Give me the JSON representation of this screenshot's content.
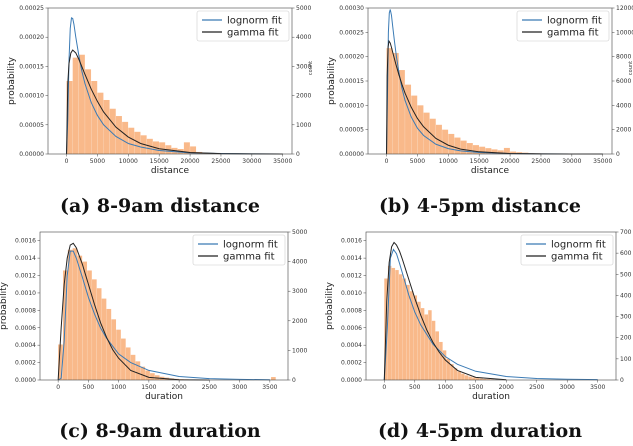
{
  "chart_data": [
    {
      "type": "bar",
      "caption": "(a) 8-9am distance",
      "xlabel": "distance",
      "ylabel": "probability",
      "y2label": "count",
      "xlim": [
        -3000,
        36500
      ],
      "ylim": [
        0,
        0.00025
      ],
      "y2lim": [
        0,
        5000
      ],
      "xticks": [
        "0",
        "5000",
        "10000",
        "15000",
        "20000",
        "25000",
        "30000",
        "35000"
      ],
      "xtick_values": [
        0,
        5000,
        10000,
        15000,
        20000,
        25000,
        30000,
        35000
      ],
      "yticks": [
        "0.00000",
        "0.00005",
        "0.00010",
        "0.00015",
        "0.00020",
        "0.00025"
      ],
      "ytick_values": [
        0,
        5e-05,
        0.0001,
        0.00015,
        0.0002,
        0.00025
      ],
      "y2ticks": [
        "0",
        "1000",
        "2000",
        "3000",
        "4000",
        "5000"
      ],
      "y2tick_values": [
        0,
        1000,
        2000,
        3000,
        4000,
        5000
      ],
      "legend": {
        "position": "top-right",
        "entries": [
          "lognorm fit",
          "gamma fit"
        ]
      },
      "histogram": {
        "x_start": 0,
        "bin_width": 1000,
        "counts": [
          2500,
          3300,
          3400,
          2900,
          2500,
          2100,
          1850,
          1550,
          1300,
          1100,
          900,
          760,
          640,
          520,
          430,
          400,
          300,
          210,
          170,
          400,
          260,
          70,
          50,
          40,
          35,
          28,
          22,
          18,
          15,
          12,
          10,
          8,
          6,
          5
        ]
      },
      "series": [
        {
          "name": "lognorm fit",
          "color": "#3b7bb5",
          "x": [
            0,
            200,
            400,
            600,
            800,
            1000,
            1200,
            1500,
            2000,
            2500,
            3000,
            4000,
            5000,
            6000,
            8000,
            10000,
            12000,
            15000,
            20000,
            25000,
            30000,
            35000
          ],
          "values": [
            0,
            6e-05,
            0.00016,
            0.000215,
            0.000233,
            0.000232,
            0.000222,
            0.0002,
            0.000168,
            0.000141,
            0.00012,
            8.8e-05,
            6.6e-05,
            5e-05,
            3e-05,
            1.8e-05,
            1.2e-05,
            6e-06,
            2e-06,
            8e-07,
            3e-07,
            1e-07
          ]
        },
        {
          "name": "gamma fit",
          "color": "#222222",
          "x": [
            0,
            200,
            400,
            700,
            1000,
            1500,
            2000,
            2500,
            3000,
            4000,
            5000,
            6000,
            8000,
            10000,
            12000,
            15000,
            20000,
            25000,
            30000,
            35000
          ],
          "values": [
            0,
            0.00012,
            0.000155,
            0.000173,
            0.000178,
            0.000173,
            0.000162,
            0.000149,
            0.000136,
            0.000111,
            9e-05,
            7.2e-05,
            4.6e-05,
            2.9e-05,
            1.8e-05,
            9e-06,
            2.5e-06,
            7e-07,
            2e-07,
            5e-08
          ]
        }
      ],
      "bar_color": "#f9b98a"
    },
    {
      "type": "bar",
      "caption": "(b) 4-5pm distance",
      "xlabel": "distance",
      "ylabel": "probability",
      "y2label": "count",
      "xlim": [
        -3000,
        36500
      ],
      "ylim": [
        0,
        0.0003
      ],
      "y2lim": [
        0,
        12000
      ],
      "xticks": [
        "0",
        "5000",
        "10000",
        "15000",
        "20000",
        "25000",
        "30000",
        "35000"
      ],
      "xtick_values": [
        0,
        5000,
        10000,
        15000,
        20000,
        25000,
        30000,
        35000
      ],
      "yticks": [
        "0.00000",
        "0.00005",
        "0.00010",
        "0.00015",
        "0.00020",
        "0.00025",
        "0.00030"
      ],
      "ytick_values": [
        0,
        5e-05,
        0.0001,
        0.00015,
        0.0002,
        0.00025,
        0.0003
      ],
      "y2ticks": [
        "0",
        "2000",
        "4000",
        "6000",
        "8000",
        "10000",
        "12000"
      ],
      "y2tick_values": [
        0,
        2000,
        4000,
        6000,
        8000,
        10000,
        12000
      ],
      "legend": {
        "position": "top-right",
        "entries": [
          "lognorm fit",
          "gamma fit"
        ]
      },
      "histogram": {
        "x_start": 0,
        "bin_width": 1000,
        "counts": [
          8700,
          8300,
          6900,
          5700,
          4800,
          4000,
          3400,
          2900,
          2400,
          2000,
          1650,
          1350,
          1100,
          900,
          730,
          600,
          480,
          380,
          300,
          500,
          200,
          150,
          110,
          80,
          60,
          45,
          35,
          25,
          18,
          12,
          9,
          6,
          4,
          3
        ]
      },
      "series": [
        {
          "name": "lognorm fit",
          "color": "#3b7bb5",
          "x": [
            0,
            150,
            300,
            450,
            600,
            800,
            1000,
            1300,
            1600,
            2000,
            2500,
            3000,
            4000,
            5000,
            6000,
            8000,
            10000,
            12000,
            15000,
            20000,
            25000,
            30000,
            35000
          ],
          "values": [
            0,
            0.00012,
            0.00025,
            0.00029,
            0.000297,
            0.000285,
            0.000262,
            0.00023,
            0.0002,
            0.000168,
            0.000135,
            0.00011,
            7.6e-05,
            5.3e-05,
            3.8e-05,
            2e-05,
            1.1e-05,
            6.5e-06,
            3e-06,
            9e-07,
            3e-07,
            1e-07,
            4e-08
          ]
        },
        {
          "name": "gamma fit",
          "color": "#222222",
          "x": [
            0,
            100,
            250,
            400,
            600,
            800,
            1000,
            1500,
            2000,
            2500,
            3000,
            4000,
            5000,
            6000,
            8000,
            10000,
            12000,
            15000,
            20000,
            25000,
            30000,
            35000
          ],
          "values": [
            0,
            0.00016,
            0.00022,
            0.000232,
            0.000228,
            0.000219,
            0.000209,
            0.000185,
            0.000163,
            0.000143,
            0.000125,
            9.6e-05,
            7.3e-05,
            5.6e-05,
            3.2e-05,
            1.8e-05,
            1e-05,
            4.5e-06,
            1e-06,
            2e-07,
            5e-08,
            1e-08
          ]
        }
      ],
      "bar_color": "#f9b98a"
    },
    {
      "type": "bar",
      "caption": "(c) 8-9am duration",
      "xlabel": "duration",
      "ylabel": "probability",
      "y2label": "",
      "xlim": [
        -300,
        3800
      ],
      "ylim": [
        0,
        0.0017
      ],
      "y2lim": [
        0,
        5000
      ],
      "xticks": [
        "0",
        "500",
        "1000",
        "1500",
        "2000",
        "2500",
        "3000",
        "3500"
      ],
      "xtick_values": [
        0,
        500,
        1000,
        1500,
        2000,
        2500,
        3000,
        3500
      ],
      "yticks": [
        "0.0000",
        "0.0002",
        "0.0004",
        "0.0006",
        "0.0008",
        "0.0010",
        "0.0012",
        "0.0014",
        "0.0016"
      ],
      "ytick_values": [
        0,
        0.0002,
        0.0004,
        0.0006,
        0.0008,
        0.001,
        0.0012,
        0.0014,
        0.0016
      ],
      "y2ticks": [
        "0",
        "1000",
        "2000",
        "3000",
        "4000",
        "5000"
      ],
      "y2tick_values": [
        0,
        1000,
        2000,
        3000,
        4000,
        5000
      ],
      "legend": {
        "position": "top-right",
        "entries": [
          "lognorm fit",
          "gamma fit"
        ]
      },
      "histogram": {
        "x_start": 0,
        "bin_width": 80,
        "counts": [
          1200,
          3700,
          4400,
          4450,
          4200,
          4000,
          3700,
          3400,
          3100,
          2750,
          2400,
          2050,
          1700,
          1400,
          1100,
          850,
          630,
          450,
          320,
          230,
          160,
          110,
          80,
          55,
          40,
          30,
          22,
          16,
          12,
          9,
          7,
          5,
          4,
          3,
          2,
          2,
          2,
          2,
          2,
          2,
          2,
          1,
          1,
          1,
          100
        ]
      },
      "series": [
        {
          "name": "lognorm fit",
          "color": "#3b7bb5",
          "x": [
            0,
            50,
            100,
            150,
            200,
            250,
            300,
            400,
            500,
            600,
            700,
            800,
            1000,
            1200,
            1500,
            2000,
            2500,
            3000,
            3500
          ],
          "values": [
            0,
            2e-05,
            0.00045,
            0.0012,
            0.00148,
            0.00148,
            0.0014,
            0.00118,
            0.00095,
            0.00076,
            0.0006,
            0.00048,
            0.0003,
            0.0002,
            0.00011,
            4e-05,
            1.6e-05,
            7e-06,
            3e-06
          ]
        },
        {
          "name": "gamma fit",
          "color": "#222222",
          "x": [
            0,
            50,
            100,
            150,
            200,
            250,
            300,
            400,
            500,
            600,
            700,
            800,
            900,
            1000,
            1200,
            1500,
            2000,
            2500
          ],
          "values": [
            0,
            0.0006,
            0.0011,
            0.0014,
            0.00155,
            0.00157,
            0.00152,
            0.00133,
            0.0011,
            0.00087,
            0.00066,
            0.00049,
            0.00035,
            0.00025,
            0.00011,
            3e-05,
            3e-06,
            2e-07
          ]
        }
      ],
      "bar_color": "#f9b98a"
    },
    {
      "type": "bar",
      "caption": "(d) 4-5pm duration",
      "xlabel": "duration",
      "ylabel": "probability",
      "y2label": "",
      "xlim": [
        -300,
        3800
      ],
      "ylim": [
        0,
        0.0017
      ],
      "y2lim": [
        0,
        700
      ],
      "xticks": [
        "0",
        "500",
        "1000",
        "1500",
        "2000",
        "2500",
        "3000",
        "3500"
      ],
      "xtick_values": [
        0,
        500,
        1000,
        1500,
        2000,
        2500,
        3000,
        3500
      ],
      "yticks": [
        "0.0000",
        "0.0002",
        "0.0004",
        "0.0006",
        "0.0008",
        "0.0010",
        "0.0012",
        "0.0014",
        "0.0016"
      ],
      "ytick_values": [
        0,
        0.0002,
        0.0004,
        0.0006,
        0.0008,
        0.001,
        0.0012,
        0.0014,
        0.0016
      ],
      "y2ticks": [
        "0",
        "100",
        "200",
        "300",
        "400",
        "500",
        "600",
        "700"
      ],
      "y2tick_values": [
        0,
        100,
        200,
        300,
        400,
        500,
        600,
        700
      ],
      "legend": {
        "position": "top-right",
        "entries": [
          "lognorm fit",
          "gamma fit"
        ]
      },
      "histogram": {
        "x_start": 0,
        "bin_width": 60,
        "counts": [
          480,
          540,
          530,
          520,
          500,
          480,
          450,
          420,
          400,
          370,
          340,
          310,
          330,
          280,
          230,
          180,
          140,
          100,
          75,
          55,
          40,
          30,
          22,
          16,
          12,
          9,
          7,
          5,
          4,
          3
        ]
      },
      "series": [
        {
          "name": "lognorm fit",
          "color": "#3b7bb5",
          "x": [
            0,
            50,
            100,
            150,
            200,
            250,
            300,
            400,
            500,
            600,
            800,
            1000,
            1200,
            1500,
            2000,
            2500,
            3000,
            3500
          ],
          "values": [
            0,
            0.0006,
            0.0014,
            0.0015,
            0.00145,
            0.00134,
            0.00122,
            0.00098,
            0.00078,
            0.00063,
            0.00041,
            0.00027,
            0.00018,
            0.0001,
            4e-05,
            1.7e-05,
            8e-06,
            4e-06
          ]
        },
        {
          "name": "gamma fit",
          "color": "#222222",
          "x": [
            0,
            40,
            80,
            120,
            160,
            200,
            250,
            300,
            400,
            500,
            600,
            700,
            800,
            900,
            1000,
            1200,
            1500,
            2000
          ],
          "values": [
            0,
            0.0009,
            0.00135,
            0.00153,
            0.00158,
            0.00155,
            0.00148,
            0.00138,
            0.00116,
            0.00094,
            0.00074,
            0.00057,
            0.00043,
            0.00032,
            0.00023,
            0.00011,
            3e-05,
            3e-06
          ]
        }
      ],
      "bar_color": "#f9b98a"
    }
  ]
}
